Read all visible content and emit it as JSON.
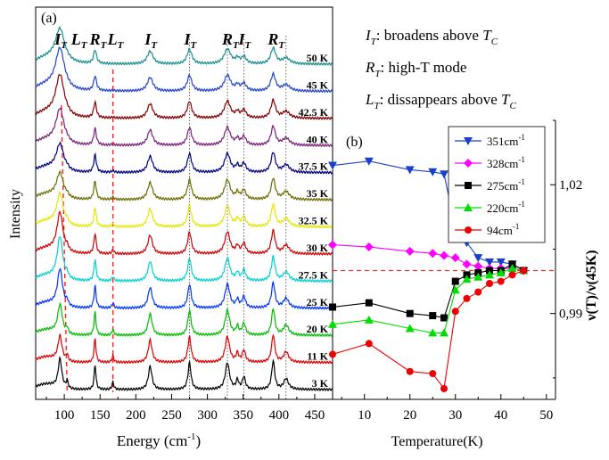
{
  "chart_data": [
    {
      "type": "line",
      "panel_label": "(a)",
      "xlabel": "Energy",
      "xlabel_unit": "(cm",
      "xlabel_unit_exp": "-1",
      "xlabel_unit_close": ")",
      "ylabel": "Intensity",
      "xlim": [
        60,
        475
      ],
      "x_ticks": [
        100,
        150,
        200,
        250,
        300,
        350,
        400,
        450
      ],
      "temperatures": [
        "50 K",
        "45 K",
        "42.5 K",
        "40 K",
        "37.5 K",
        "35 K",
        "32.5 K",
        "30 K",
        "27.5 K",
        "25 K",
        "20 K",
        "11 K",
        "3 K"
      ],
      "series_colors": [
        "#1a8f8f",
        "#2244cc",
        "#800000",
        "#7a1f7a",
        "#000080",
        "#6b6b00",
        "#e6e600",
        "#cc0000",
        "#00d0d0",
        "#0033ff",
        "#00bb00",
        "#dd0000",
        "#000000"
      ],
      "peaks": [
        94,
        104,
        143,
        168,
        220,
        275,
        328,
        342,
        351,
        392,
        410
      ],
      "mode_labels": [
        {
          "x": 94,
          "letter": "I",
          "sub": "T"
        },
        {
          "x": 117,
          "letter": "L",
          "sub": "T"
        },
        {
          "x": 143,
          "letter": "R",
          "sub": "T"
        },
        {
          "x": 168,
          "letter": "L",
          "sub": "T"
        },
        {
          "x": 220,
          "letter": "I",
          "sub": "T"
        },
        {
          "x": 275,
          "letter": "I",
          "sub": "T"
        },
        {
          "x": 328,
          "letter": "R",
          "sub": "T"
        },
        {
          "x": 351,
          "letter": "I",
          "sub": "T"
        },
        {
          "x": 392,
          "letter": "R",
          "sub": "T"
        }
      ],
      "dotted_lines": [
        275,
        328,
        351,
        410
      ],
      "dashed_line": 168
    },
    {
      "type": "line",
      "panel_label": "(b)",
      "xlabel": "Temperature(K)",
      "ylabel": "ν(T)/ν(45K)",
      "xlim": [
        3,
        52
      ],
      "ylim": [
        0.97,
        1.035
      ],
      "x_ticks": [
        10,
        20,
        30,
        40,
        50
      ],
      "y_ticks": [
        {
          "value": 0.99,
          "label": "0,99"
        },
        {
          "value": 1.02,
          "label": "1,02"
        }
      ],
      "reference_line": 1.0,
      "series": [
        {
          "name": "351cm",
          "sup": "-1",
          "color": "#1a3fcc",
          "marker": "triangle-down",
          "x": [
            3,
            11,
            20,
            25,
            27.5,
            30,
            32.5,
            35,
            37.5,
            40,
            42.5,
            45
          ],
          "y": [
            1.0245,
            1.0255,
            1.0235,
            1.023,
            1.0225,
            1.01,
            1.0065,
            1.003,
            1.002,
            1.002,
            1.0015,
            1.0
          ]
        },
        {
          "name": "328cm",
          "sup": "-1",
          "color": "#ff00ff",
          "marker": "diamond",
          "x": [
            3,
            11,
            20,
            25,
            27.5,
            30,
            32.5,
            35,
            37.5,
            40,
            42.5,
            45
          ],
          "y": [
            1.006,
            1.0055,
            1.0045,
            1.004,
            1.0035,
            1.003,
            1.0015,
            1.001,
            1.0005,
            1.0005,
            1.0005,
            1.0
          ]
        },
        {
          "name": "275cm",
          "sup": "-1",
          "color": "#000000",
          "marker": "square",
          "x": [
            3,
            11,
            20,
            25,
            27.5,
            30,
            32.5,
            35,
            37.5,
            40,
            42.5,
            45
          ],
          "y": [
            0.9915,
            0.9925,
            0.99,
            0.9895,
            0.989,
            0.9975,
            0.999,
            0.9995,
            1.0,
            1.0,
            1.0015,
            1.0
          ]
        },
        {
          "name": "220cm",
          "sup": "-1",
          "color": "#00dd00",
          "marker": "triangle-up",
          "x": [
            3,
            11,
            20,
            25,
            27.5,
            30,
            32.5,
            35,
            37.5,
            40,
            42.5,
            45
          ],
          "y": [
            0.9875,
            0.9885,
            0.9865,
            0.9855,
            0.9855,
            0.9955,
            0.998,
            0.9985,
            0.999,
            0.9995,
            1.0005,
            1.0
          ]
        },
        {
          "name": "94cm",
          "sup": "-1",
          "color": "#ee0000",
          "marker": "circle",
          "x": [
            3,
            11,
            20,
            25,
            27.5,
            30,
            32.5,
            35,
            37.5,
            40,
            42.5,
            45
          ],
          "y": [
            0.9805,
            0.983,
            0.9765,
            0.976,
            0.9725,
            0.9905,
            0.9935,
            0.995,
            0.997,
            0.9975,
            0.999,
            1.0
          ]
        }
      ]
    }
  ],
  "annotations": [
    {
      "letter": "I",
      "sub": "T",
      "text": ": broadens above ",
      "tail_letter": "T",
      "tail_sub": "C"
    },
    {
      "letter": "R",
      "sub": "T",
      "text": ": high-T mode",
      "tail_letter": "",
      "tail_sub": ""
    },
    {
      "letter": "L",
      "sub": "T",
      "text": ": dissappears above ",
      "tail_letter": "T",
      "tail_sub": "C"
    }
  ]
}
